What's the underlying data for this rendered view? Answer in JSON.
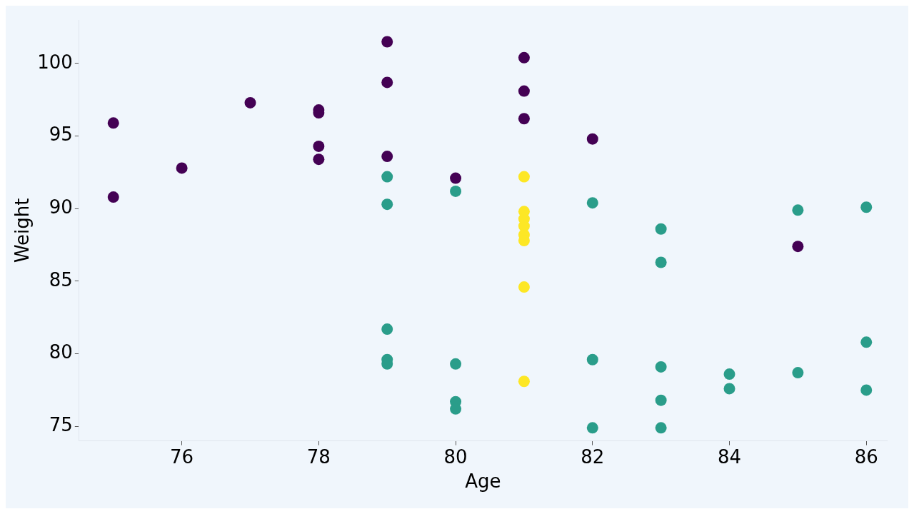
{
  "chart_data": {
    "type": "scatter",
    "xlabel": "Age",
    "ylabel": "Weight",
    "xlim": [
      74.5,
      86.3
    ],
    "xticks": [
      76,
      78,
      80,
      82,
      84,
      86
    ],
    "ylim": [
      74,
      103
    ],
    "yticks": [
      75,
      80,
      85,
      90,
      95,
      100
    ],
    "grid": false,
    "legend": false,
    "marker": "circle",
    "series": [
      {
        "color": "#440154",
        "x": [
          75,
          75,
          76,
          77,
          78,
          78,
          78,
          78,
          79,
          79,
          79,
          80,
          81,
          81,
          81,
          82,
          85
        ],
        "values": [
          95.9,
          90.8,
          92.8,
          97.3,
          96.8,
          96.6,
          94.3,
          93.4,
          101.5,
          98.7,
          93.6,
          92.1,
          100.4,
          98.1,
          96.2,
          94.8,
          87.4
        ]
      },
      {
        "color": "#2a9d8a",
        "x": [
          79,
          79,
          79,
          79,
          79,
          80,
          80,
          80,
          80,
          82,
          82,
          82,
          83,
          83,
          83,
          83,
          83,
          84,
          84,
          85,
          85,
          86,
          86,
          86
        ],
        "values": [
          92.2,
          90.3,
          81.7,
          79.6,
          79.3,
          91.2,
          79.3,
          76.7,
          76.2,
          90.4,
          79.6,
          74.9,
          88.6,
          86.3,
          79.1,
          76.8,
          74.9,
          78.6,
          77.6,
          89.9,
          78.7,
          90.1,
          80.8,
          77.5
        ]
      },
      {
        "color": "#fde725",
        "x": [
          81,
          81,
          81,
          81,
          81,
          81,
          81,
          81
        ],
        "values": [
          92.2,
          89.8,
          89.3,
          88.8,
          88.2,
          87.8,
          84.6,
          78.1
        ]
      }
    ]
  }
}
